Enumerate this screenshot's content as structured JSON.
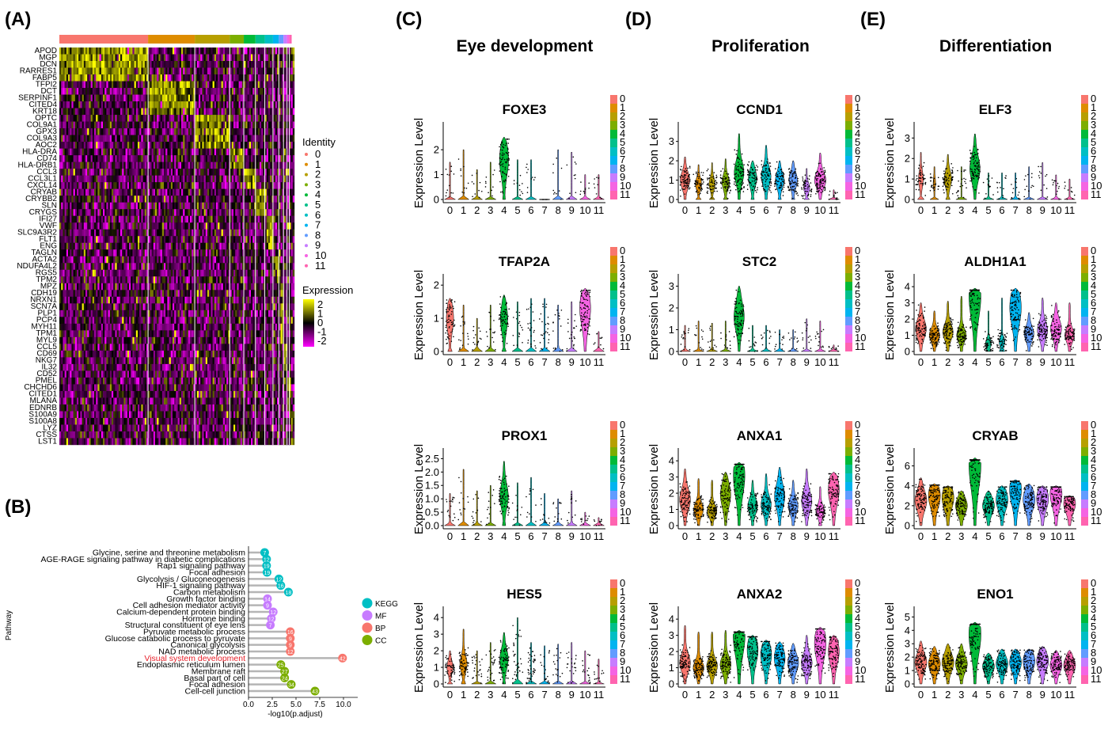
{
  "panels": {
    "A": "(A)",
    "B": "(B)",
    "C": "(C)",
    "D": "(D)",
    "E": "(E)"
  },
  "column_titles": [
    "Eye development",
    "Proliferation",
    "Differentiation"
  ],
  "colors": {
    "clusters": [
      "#F8766D",
      "#DE8C00",
      "#B79F00",
      "#7CAE00",
      "#00BA38",
      "#00C08B",
      "#00BFC4",
      "#00B4F0",
      "#619CFF",
      "#C77CFF",
      "#F564E3",
      "#FF64B0"
    ],
    "heat_low": "#FF00FF",
    "heat_mid": "#000000",
    "heat_high": "#FFFF00",
    "kegg": "#00BFC4",
    "mf": "#C77CFF",
    "bp": "#F8766D",
    "cc": "#7CAE00",
    "highlight": "#E8202A"
  },
  "chart_data": [
    {
      "type": "heatmap",
      "panel": "A",
      "rows": [
        "APOD",
        "MGP",
        "DCN",
        "RARRES1",
        "FABP5",
        "TFPI2",
        "DCT",
        "SERPINF1",
        "CITED4",
        "KRT18",
        "OPTC",
        "COL9A1",
        "GPX3",
        "COL9A3",
        "AOC2",
        "HLA-DRA",
        "CD74",
        "HLA-DRB1",
        "CCL3",
        "CCL3L1",
        "CXCL14",
        "CRYAB",
        "CRYBB2",
        "SLN",
        "CRYGS",
        "IFI27",
        "VWF",
        "SLC9A3R2",
        "FLT1",
        "ENG",
        "TAGLN",
        "ACTA2",
        "NDUFA4L2",
        "RGS5",
        "TPM2",
        "MPZ",
        "CDH19",
        "NRXN1",
        "SCN7A",
        "PLP1",
        "PCP4",
        "MYH11",
        "TPM1",
        "MYL9",
        "CCL5",
        "CD69",
        "NKG7",
        "IL32",
        "CD52",
        "PMEL",
        "CHCHD6",
        "CITED1",
        "MLANA",
        "EDNRB",
        "S100A9",
        "S100A8",
        "LYZ",
        "CTSS",
        "LST1"
      ],
      "cluster_fractions": [
        0.38,
        0.2,
        0.15,
        0.06,
        0.05,
        0.04,
        0.035,
        0.025,
        0.02,
        0.015,
        0.01,
        0.01
      ],
      "identity_title": "Identity",
      "identity_labels": [
        "0",
        "1",
        "2",
        "3",
        "4",
        "5",
        "6",
        "7",
        "8",
        "9",
        "10",
        "11"
      ],
      "expression_title": "Expression",
      "expression_ticks": [
        "2",
        "1",
        "0",
        "-1",
        "-2"
      ],
      "expression_range": [
        -2.5,
        2.5
      ]
    },
    {
      "type": "lollipop",
      "panel": "B",
      "ylabel": "Pathway",
      "xlabel": "-log10(p.adjust)",
      "xticks": [
        "0.0",
        "2.5",
        "5.0",
        "7.5",
        "10.0"
      ],
      "xlim": [
        0,
        11.5
      ],
      "items": [
        {
          "name": "Glycine, serine and threonine metabolism",
          "value": 1.7,
          "count": "7",
          "cat": "KEGG"
        },
        {
          "name": "AGE-RAGE signaling pathway in diabetic complications",
          "value": 1.9,
          "count": "12",
          "cat": "KEGG"
        },
        {
          "name": "Rap1 signaling pathway",
          "value": 1.9,
          "count": "19",
          "cat": "KEGG"
        },
        {
          "name": "Focal adhesion",
          "value": 1.95,
          "count": "19",
          "cat": "KEGG"
        },
        {
          "name": "Glycolysis / Gluconeogenesis",
          "value": 3.2,
          "count": "12",
          "cat": "KEGG"
        },
        {
          "name": "HIF-1 signaling pathway",
          "value": 3.4,
          "count": "16",
          "cat": "KEGG"
        },
        {
          "name": "Carbon metabolism",
          "value": 4.2,
          "count": "18",
          "cat": "KEGG"
        },
        {
          "name": "Growth factor binding",
          "value": 2.0,
          "count": "14",
          "cat": "MF"
        },
        {
          "name": "Cell adhesion mediator activity",
          "value": 2.0,
          "count": "9",
          "cat": "MF"
        },
        {
          "name": "Calcium-dependent protein binding",
          "value": 2.6,
          "count": "12",
          "cat": "MF"
        },
        {
          "name": "Hormone binding",
          "value": 2.4,
          "count": "12",
          "cat": "MF"
        },
        {
          "name": "Structural constituent of eye lens",
          "value": 2.3,
          "count": "7",
          "cat": "MF"
        },
        {
          "name": "Pyruvate metabolic process",
          "value": 4.4,
          "count": "16",
          "cat": "BP"
        },
        {
          "name": "Glucose catabolic process to pyruvate",
          "value": 4.4,
          "count": "9",
          "cat": "BP"
        },
        {
          "name": "Canonical glycolysis",
          "value": 4.4,
          "count": "9",
          "cat": "BP"
        },
        {
          "name": "NAD metabolic process",
          "value": 4.4,
          "count": "12",
          "cat": "BP"
        },
        {
          "name": "Visual system development",
          "value": 9.9,
          "count": "42",
          "cat": "BP",
          "highlight": true
        },
        {
          "name": "Endoplasmic reticulum lumen",
          "value": 3.4,
          "count": "25",
          "cat": "CC"
        },
        {
          "name": "Membrane raft",
          "value": 3.8,
          "count": "27",
          "cat": "CC"
        },
        {
          "name": "Basal part of cell",
          "value": 3.8,
          "count": "24",
          "cat": "CC"
        },
        {
          "name": "Focal adhesion",
          "value": 4.5,
          "count": "34",
          "cat": "CC"
        },
        {
          "name": "Cell-cell junction",
          "value": 7.0,
          "count": "43",
          "cat": "CC"
        }
      ],
      "legend": [
        "KEGG",
        "MF",
        "BP",
        "CC"
      ]
    },
    {
      "type": "violin",
      "panels": "C-E",
      "ylabel": "Expression Level",
      "clusters": [
        "0",
        "1",
        "2",
        "3",
        "4",
        "5",
        "6",
        "7",
        "8",
        "9",
        "10",
        "11"
      ],
      "genes": [
        {
          "gene": "FOXE3",
          "col": 0,
          "row": 0,
          "ymax": 2.8,
          "yticks": [
            "0",
            "1",
            "2"
          ],
          "yvals": [
            0,
            1,
            2
          ],
          "top": [
            1.5,
            2.0,
            1.2,
            1.5,
            2.5,
            1.6,
            1.6,
            0,
            2.0,
            1.9,
            1.0,
            1.0
          ],
          "frac": [
            0.05,
            0.02,
            0.02,
            0.02,
            0.75,
            0.02,
            0.02,
            0.02,
            0.02,
            0.02,
            0.02,
            0.02
          ],
          "mid": [
            0,
            0,
            0,
            0,
            1.6,
            0,
            0,
            0,
            0,
            0,
            0,
            0
          ]
        },
        {
          "gene": "TFAP2A",
          "col": 0,
          "row": 1,
          "ymax": 2.1,
          "yticks": [
            "0",
            "1",
            "2"
          ],
          "yvals": [
            0,
            1,
            2
          ],
          "top": [
            1.6,
            1.4,
            1.0,
            1.4,
            1.7,
            1.5,
            1.6,
            1.6,
            1.4,
            1.5,
            1.9,
            0.6
          ],
          "frac": [
            0.6,
            0.1,
            0.08,
            0.1,
            0.6,
            0.1,
            0.15,
            0.2,
            0.1,
            0.15,
            0.9,
            0.02
          ],
          "mid": [
            1.0,
            0,
            0,
            0,
            1.0,
            0,
            0,
            0,
            0,
            0,
            1.3,
            0
          ]
        },
        {
          "gene": "PROX1",
          "col": 0,
          "row": 2,
          "ymax": 2.6,
          "yticks": [
            "0.0",
            "0.5",
            "1.0",
            "1.5",
            "2.0",
            "2.5"
          ],
          "yvals": [
            0,
            0.5,
            1,
            1.5,
            2,
            2.5
          ],
          "top": [
            1.2,
            2.1,
            1.3,
            1.5,
            2.4,
            1.6,
            1.8,
            1.2,
            1.0,
            1.3,
            0.5,
            0.3
          ],
          "frac": [
            0.1,
            0.05,
            0.04,
            0.04,
            0.7,
            0.04,
            0.04,
            0.04,
            0.04,
            0.04,
            0.02,
            0.02
          ],
          "mid": [
            0,
            0,
            0,
            0,
            1.1,
            0,
            0,
            0,
            0,
            0,
            0,
            0
          ]
        },
        {
          "gene": "HES5",
          "col": 0,
          "row": 3,
          "ymax": 4.2,
          "yticks": [
            "0",
            "1",
            "2",
            "3",
            "4"
          ],
          "yvals": [
            0,
            1,
            2,
            3,
            4
          ],
          "top": [
            2.0,
            3.3,
            2.0,
            2.5,
            3.1,
            4.0,
            2.5,
            2.3,
            2.4,
            2.5,
            2.0,
            1.5
          ],
          "frac": [
            0.5,
            0.6,
            0.2,
            0.2,
            0.7,
            0.3,
            0.4,
            0.1,
            0.1,
            0.15,
            0.1,
            0.05
          ],
          "mid": [
            1.0,
            1.2,
            0,
            0,
            1.5,
            0,
            0,
            0,
            0,
            0,
            0,
            0
          ]
        },
        {
          "gene": "CCND1",
          "col": 1,
          "row": 0,
          "ymax": 3.6,
          "yticks": [
            "0",
            "1",
            "2",
            "3"
          ],
          "yvals": [
            0,
            1,
            2,
            3
          ],
          "top": [
            2.2,
            1.8,
            1.9,
            2.1,
            3.4,
            2.0,
            2.8,
            2.0,
            2.0,
            1.6,
            2.4,
            0.5
          ],
          "frac": [
            0.8,
            0.5,
            0.5,
            0.6,
            0.8,
            0.7,
            0.8,
            0.7,
            0.7,
            0.5,
            0.95,
            0.05
          ],
          "mid": [
            1.0,
            0.8,
            0.8,
            0.9,
            1.4,
            1.1,
            1.2,
            1.0,
            1.0,
            0.6,
            1.0,
            0
          ]
        },
        {
          "gene": "STC2",
          "col": 1,
          "row": 1,
          "ymax": 3.2,
          "yticks": [
            "0",
            "1",
            "2",
            "3"
          ],
          "yvals": [
            0,
            1,
            2,
            3
          ],
          "top": [
            1.2,
            1.4,
            1.3,
            1.4,
            3.0,
            1.2,
            1.2,
            1.0,
            1.0,
            1.5,
            1.4,
            0.3
          ],
          "frac": [
            0.1,
            0.06,
            0.06,
            0.06,
            0.85,
            0.06,
            0.06,
            0.05,
            0.05,
            0.05,
            0.05,
            0.02
          ],
          "mid": [
            0,
            0,
            0,
            0,
            1.6,
            0,
            0,
            0,
            0,
            0,
            0,
            0
          ]
        },
        {
          "gene": "ANXA1",
          "col": 1,
          "row": 2,
          "ymax": 4.3,
          "yticks": [
            "0",
            "1",
            "2",
            "3",
            "4"
          ],
          "yvals": [
            0,
            1,
            2,
            3,
            4
          ],
          "top": [
            3.5,
            2.9,
            2.8,
            3.3,
            3.9,
            2.8,
            3.2,
            3.6,
            2.8,
            3.5,
            2.4,
            3.3
          ],
          "frac": [
            0.9,
            0.8,
            0.8,
            0.85,
            0.95,
            0.8,
            0.85,
            0.85,
            0.8,
            0.85,
            0.7,
            0.9
          ],
          "mid": [
            1.6,
            1.0,
            0.9,
            1.9,
            3.1,
            1.2,
            1.3,
            1.8,
            1.2,
            1.5,
            0.9,
            2.2
          ]
        },
        {
          "gene": "ANXA2",
          "col": 1,
          "row": 3,
          "ymax": 4.3,
          "yticks": [
            "0",
            "1",
            "2",
            "3",
            "4"
          ],
          "yvals": [
            0,
            1,
            2,
            3,
            4
          ],
          "top": [
            3.6,
            3.2,
            3.2,
            3.3,
            3.3,
            3.0,
            2.7,
            2.6,
            2.5,
            3.0,
            3.5,
            3.0
          ],
          "frac": [
            0.9,
            0.9,
            0.9,
            0.9,
            0.98,
            0.9,
            0.9,
            0.9,
            0.9,
            0.9,
            0.95,
            0.9
          ],
          "mid": [
            1.3,
            1.0,
            1.1,
            1.2,
            3.0,
            2.1,
            1.8,
            1.6,
            1.3,
            1.3,
            2.5,
            2.0
          ]
        },
        {
          "gene": "ELF3",
          "col": 2,
          "row": 0,
          "ymax": 3.4,
          "yticks": [
            "0",
            "1",
            "2",
            "3"
          ],
          "yvals": [
            0,
            1,
            2,
            3
          ],
          "top": [
            2.3,
            1.6,
            2.2,
            1.6,
            3.2,
            1.3,
            1.3,
            1.3,
            1.6,
            1.8,
            1.2,
            1.0
          ],
          "frac": [
            0.4,
            0.2,
            0.6,
            0.15,
            0.85,
            0.05,
            0.05,
            0.05,
            0.05,
            0.05,
            0.05,
            0.02
          ],
          "mid": [
            1.0,
            0.8,
            1.0,
            0,
            1.5,
            0,
            0,
            0,
            0,
            0,
            0,
            0
          ]
        },
        {
          "gene": "ALDH1A1",
          "col": 2,
          "row": 1,
          "ymax": 4.3,
          "yticks": [
            "0",
            "1",
            "2",
            "3",
            "4"
          ],
          "yvals": [
            0,
            1,
            2,
            3,
            4
          ],
          "top": [
            3.0,
            2.5,
            3.1,
            3.4,
            3.9,
            2.5,
            3.3,
            3.9,
            2.4,
            3.3,
            3.0,
            3.0
          ],
          "frac": [
            0.9,
            0.85,
            0.85,
            0.8,
            0.98,
            0.5,
            0.5,
            0.95,
            0.8,
            0.85,
            0.9,
            0.8
          ],
          "mid": [
            1.4,
            1.0,
            1.2,
            1.0,
            3.4,
            0.5,
            0.6,
            2.7,
            1.1,
            1.3,
            1.4,
            1.0
          ]
        },
        {
          "gene": "CRYAB",
          "col": 2,
          "row": 2,
          "ymax": 7.0,
          "yticks": [
            "0",
            "2",
            "4",
            "6"
          ],
          "yvals": [
            0,
            2,
            4,
            6
          ],
          "top": [
            4.8,
            4.2,
            4.0,
            3.5,
            6.8,
            3.5,
            4.0,
            4.6,
            4.2,
            4.0,
            4.0,
            3.0
          ],
          "frac": [
            0.98,
            0.98,
            0.98,
            0.98,
            0.99,
            0.98,
            0.98,
            0.98,
            0.98,
            0.98,
            0.98,
            0.98
          ],
          "mid": [
            2.5,
            3.0,
            2.8,
            2.0,
            6.2,
            2.0,
            2.6,
            3.6,
            2.6,
            2.7,
            3.2,
            2.2
          ]
        },
        {
          "gene": "ENO1",
          "col": 2,
          "row": 3,
          "ymax": 5.2,
          "yticks": [
            "0",
            "1",
            "2",
            "3",
            "4",
            "5"
          ],
          "yvals": [
            0,
            1,
            2,
            3,
            4,
            5
          ],
          "top": [
            3.2,
            2.8,
            3.0,
            3.0,
            4.6,
            2.3,
            2.6,
            2.6,
            2.6,
            2.8,
            2.5,
            2.5
          ],
          "frac": [
            0.98,
            0.98,
            0.98,
            0.98,
            0.99,
            0.98,
            0.98,
            0.98,
            0.98,
            0.98,
            0.98,
            0.98
          ],
          "mid": [
            1.6,
            1.5,
            1.6,
            1.5,
            3.7,
            1.3,
            1.5,
            1.6,
            1.7,
            1.7,
            1.4,
            1.4
          ]
        }
      ]
    }
  ]
}
